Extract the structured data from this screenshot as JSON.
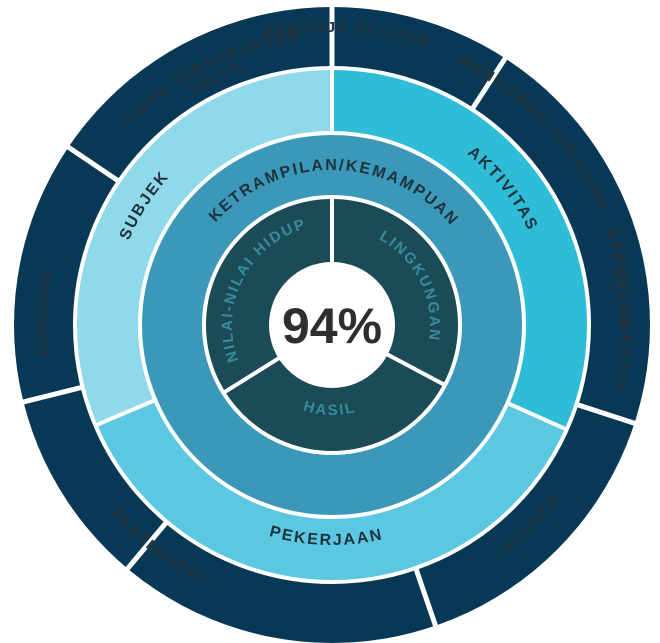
{
  "center": {
    "value": "94%"
  },
  "colors": {
    "outer": "#073855",
    "inner_core": "#1b4b56",
    "skills_ring": "#3b98b8",
    "subjek": "#8fd9ea",
    "aktivitas": "#2fbcd6",
    "pekerjaan": "#5bc7e0",
    "divider": "#ffffff",
    "outer_text": "#24323c",
    "ring_text": "#20323d",
    "center_text": "#2e2e2e"
  },
  "core": {
    "segments": [
      {
        "label": "NILAI-NILAI HIDUP"
      },
      {
        "label": "LINGKUNGAN"
      },
      {
        "label": "HASIL"
      }
    ]
  },
  "skills": {
    "label": "KETRAMPILAN/KEMAMPUAN"
  },
  "interests": {
    "segments": [
      {
        "label": "SUBJEK"
      },
      {
        "label": "AKTIVITAS"
      },
      {
        "label": "PEKERJAAN"
      }
    ]
  },
  "traits": {
    "segments": [
      {
        "label": "TIDAK TERSTRUKTUR"
      },
      {
        "label": "TELITI"
      },
      {
        "label": "BEKERJA DI LUAR"
      },
      {
        "label": "MENGAMBIL RISIKO/PE"
      },
      {
        "label": "DALAM"
      },
      {
        "label": "BERBELAS KASIH"
      },
      {
        "label": "INOVATIF"
      },
      {
        "label": "EKSTROVERT"
      },
      {
        "label": "DOMINAN"
      }
    ]
  }
}
